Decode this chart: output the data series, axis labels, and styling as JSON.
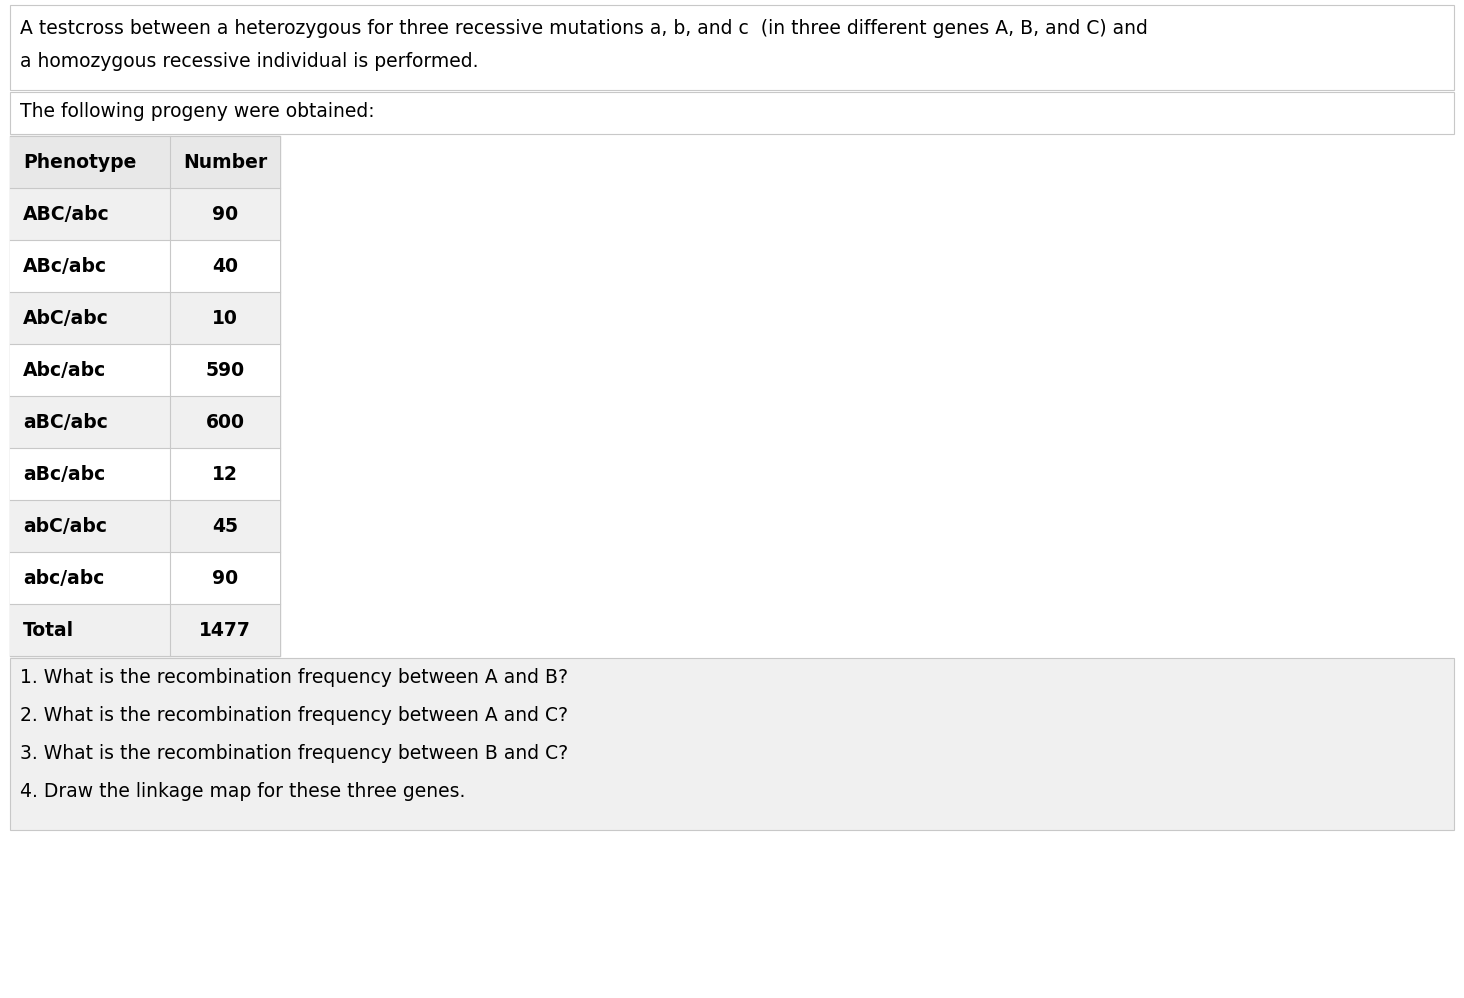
{
  "title_line1": "A testcross between a heterozygous for three recessive mutations a, b, and c  (in three different genes A, B, and C) and",
  "title_line2": "a homozygous recessive individual is performed.",
  "subtitle": "The following progeny were obtained:",
  "table_headers": [
    "Phenotype",
    "Number"
  ],
  "table_rows": [
    [
      "ABC/abc",
      "90"
    ],
    [
      "ABc/abc",
      "40"
    ],
    [
      "AbC/abc",
      "10"
    ],
    [
      "Abc/abc",
      "590"
    ],
    [
      "aBC/abc",
      "600"
    ],
    [
      "aBc/abc",
      "12"
    ],
    [
      "abC/abc",
      "45"
    ],
    [
      "abc/abc",
      "90"
    ],
    [
      "Total",
      "1477"
    ]
  ],
  "questions": [
    "1. What is the recombination frequency between A and B?",
    "2. What is the recombination frequency between A and C?",
    "3. What is the recombination frequency between B and C?",
    "4. Draw the linkage map for these three genes."
  ],
  "bg_color": "#ffffff",
  "title_bg": "#ffffff",
  "subtitle_bg": "#ffffff",
  "header_bg": "#e8e8e8",
  "row_alt_bg": "#f0f0f0",
  "row_white_bg": "#ffffff",
  "questions_bg": "#f0f0f0",
  "border_color": "#c8c8c8",
  "text_color": "#000000",
  "font_size": 13.5
}
